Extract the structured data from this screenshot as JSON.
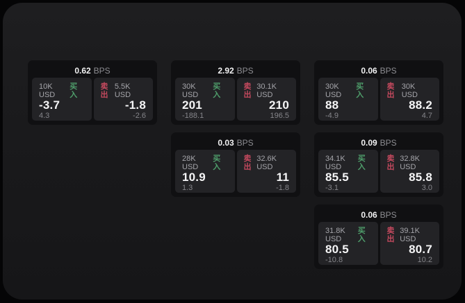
{
  "labels": {
    "bps": "BPS",
    "buy": "买入",
    "sell": "卖出"
  },
  "colors": {
    "buy": "#4f9e6b",
    "sell": "#c4495e",
    "surface": "#19191b",
    "card": "#101012",
    "panel": "#232326"
  },
  "cards": [
    {
      "row": 1,
      "col": 1,
      "bps": "0.62",
      "buy": {
        "size": "10K USD",
        "price": "-3.7",
        "delta": "4.3"
      },
      "sell": {
        "size": "5.5K USD",
        "price": "-1.8",
        "delta": "-2.6"
      }
    },
    {
      "row": 1,
      "col": 2,
      "bps": "2.92",
      "buy": {
        "size": "30K USD",
        "price": "201",
        "delta": "-188.1"
      },
      "sell": {
        "size": "30.1K USD",
        "price": "210",
        "delta": "196.5"
      }
    },
    {
      "row": 1,
      "col": 3,
      "bps": "0.06",
      "buy": {
        "size": "30K USD",
        "price": "88",
        "delta": "-4.9"
      },
      "sell": {
        "size": "30K USD",
        "price": "88.2",
        "delta": "4.7"
      }
    },
    {
      "row": 2,
      "col": 2,
      "bps": "0.03",
      "buy": {
        "size": "28K USD",
        "price": "10.9",
        "delta": "1.3"
      },
      "sell": {
        "size": "32.6K USD",
        "price": "11",
        "delta": "-1.8"
      }
    },
    {
      "row": 2,
      "col": 3,
      "bps": "0.09",
      "buy": {
        "size": "34.1K USD",
        "price": "85.5",
        "delta": "-3.1"
      },
      "sell": {
        "size": "32.8K USD",
        "price": "85.8",
        "delta": "3.0"
      }
    },
    {
      "row": 3,
      "col": 3,
      "bps": "0.06",
      "buy": {
        "size": "31.8K USD",
        "price": "80.5",
        "delta": "-10.8"
      },
      "sell": {
        "size": "39.1K USD",
        "price": "80.7",
        "delta": "10.2"
      }
    }
  ]
}
